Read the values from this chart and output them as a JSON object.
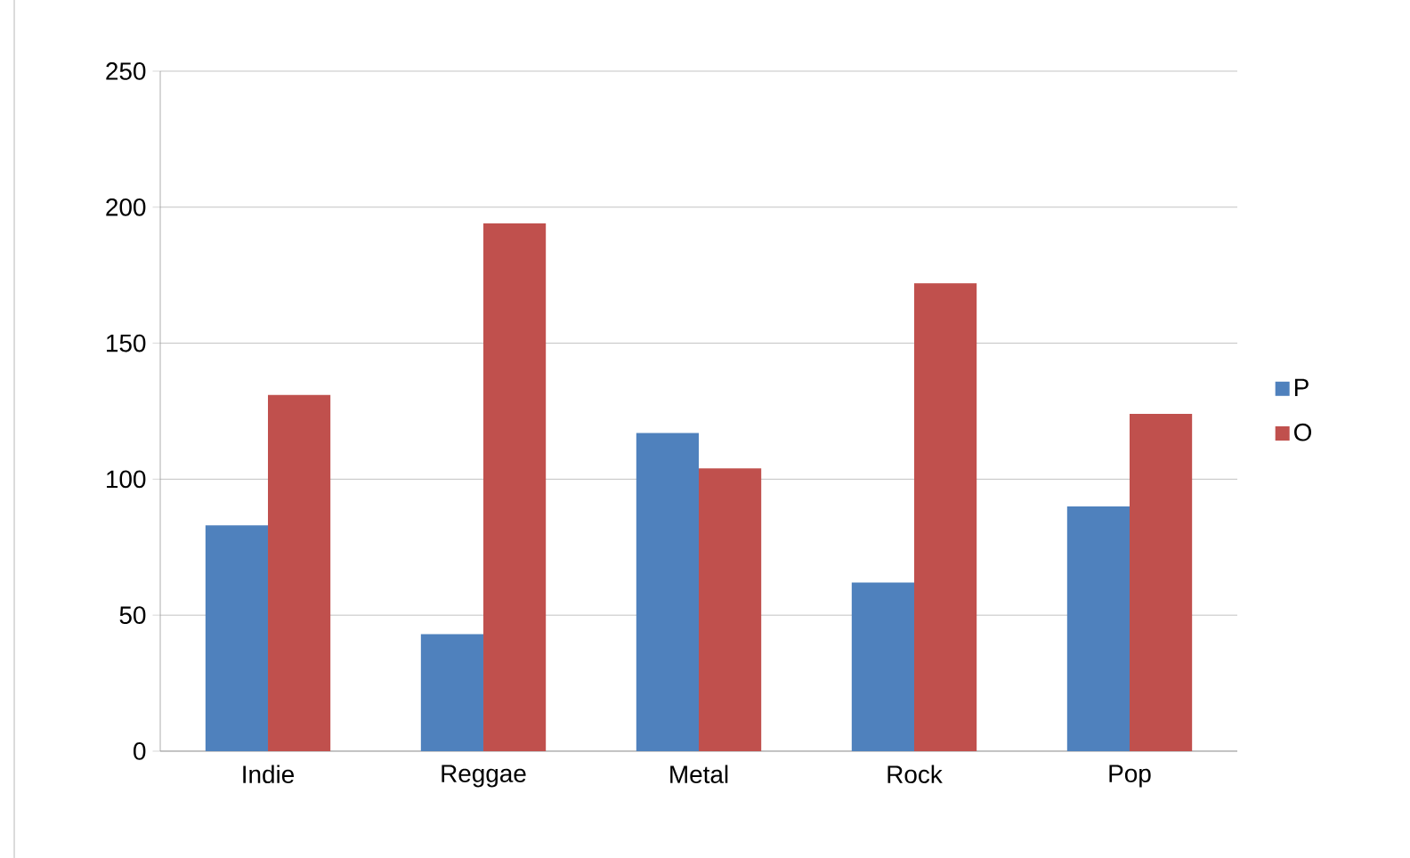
{
  "chart_data": {
    "type": "bar",
    "categories": [
      "Indie",
      "Reggae",
      "Metal",
      "Rock",
      "Pop"
    ],
    "series": [
      {
        "name": "P",
        "color": "#4f81bd",
        "values": [
          83,
          43,
          117,
          62,
          90
        ]
      },
      {
        "name": "O",
        "color": "#c0504d",
        "values": [
          131,
          194,
          104,
          172,
          124
        ]
      }
    ],
    "ylim": [
      0,
      250
    ],
    "yticks": [
      0,
      50,
      100,
      150,
      200,
      250
    ],
    "grid": "y",
    "legend": "right"
  }
}
